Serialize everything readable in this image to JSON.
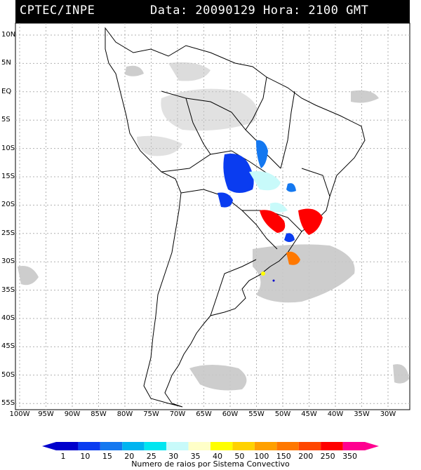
{
  "header": {
    "source": "CPTEC/INPE",
    "date_label": "Data: 20090129 Hora: 2100 GMT"
  },
  "map": {
    "lat_labels": [
      "10N",
      "5N",
      "EQ",
      "5S",
      "10S",
      "15S",
      "20S",
      "25S",
      "30S",
      "35S",
      "40S",
      "45S",
      "50S",
      "55S"
    ],
    "lon_labels": [
      "100W",
      "95W",
      "90W",
      "85W",
      "80W",
      "75W",
      "70W",
      "65W",
      "60W",
      "55W",
      "50W",
      "45W",
      "40W",
      "35W",
      "30W"
    ],
    "colors": {
      "land_outline": "#000000",
      "cloud": "#c8c8c8",
      "grid": "#b0b0b0"
    }
  },
  "legend": {
    "values": [
      "1",
      "10",
      "15",
      "20",
      "25",
      "30",
      "35",
      "40",
      "50",
      "100",
      "150",
      "200",
      "250",
      "350"
    ],
    "colors": [
      "#0000cc",
      "#0a3cf0",
      "#1478f0",
      "#00b4f0",
      "#00e6f0",
      "#c8fafa",
      "#ffffc8",
      "#ffff00",
      "#ffd200",
      "#ffa000",
      "#ff7800",
      "#ff4600",
      "#ff0000",
      "#ff0090"
    ],
    "title": "Numero de raios por Sistema Convectivo"
  }
}
